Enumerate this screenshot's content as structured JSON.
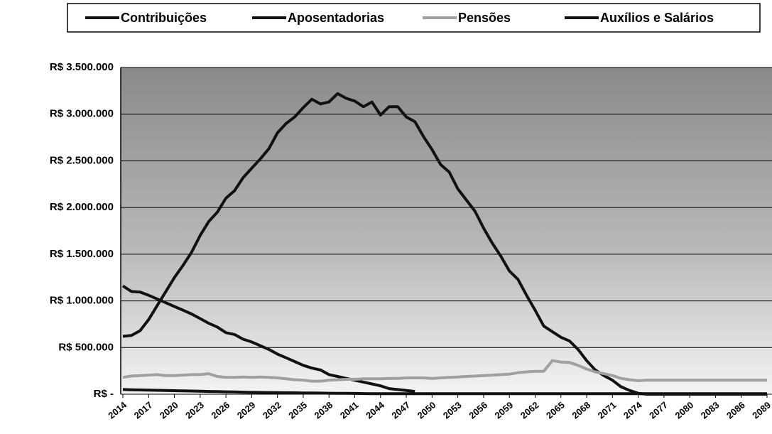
{
  "chart_data": {
    "type": "line",
    "x": [
      2014,
      2015,
      2016,
      2017,
      2018,
      2019,
      2020,
      2021,
      2022,
      2023,
      2024,
      2025,
      2026,
      2027,
      2028,
      2029,
      2030,
      2031,
      2032,
      2033,
      2034,
      2035,
      2036,
      2037,
      2038,
      2039,
      2040,
      2041,
      2042,
      2043,
      2044,
      2045,
      2046,
      2047,
      2048,
      2049,
      2050,
      2051,
      2052,
      2053,
      2054,
      2055,
      2056,
      2057,
      2058,
      2059,
      2060,
      2061,
      2062,
      2063,
      2064,
      2065,
      2066,
      2067,
      2068,
      2069,
      2070,
      2071,
      2072,
      2073,
      2074,
      2075,
      2076,
      2077,
      2078,
      2079,
      2080,
      2081,
      2082,
      2083,
      2084,
      2085,
      2086,
      2087,
      2088,
      2089
    ],
    "xlim": [
      2014,
      2089
    ],
    "xticks": [
      2014,
      2017,
      2020,
      2023,
      2026,
      2029,
      2032,
      2035,
      2038,
      2041,
      2044,
      2047,
      2050,
      2053,
      2056,
      2059,
      2062,
      2065,
      2068,
      2071,
      2074,
      2077,
      2080,
      2083,
      2086,
      2089
    ],
    "ylim": [
      0,
      3500000
    ],
    "yticks": [
      {
        "value": 0,
        "label": "R$ -"
      },
      {
        "value": 500000,
        "label": "R$ 500.000"
      },
      {
        "value": 1000000,
        "label": "R$ 1.000.000"
      },
      {
        "value": 1500000,
        "label": "R$ 1.500.000"
      },
      {
        "value": 2000000,
        "label": "R$ 2.000.000"
      },
      {
        "value": 2500000,
        "label": "R$ 2.500.000"
      },
      {
        "value": 3000000,
        "label": "R$ 3.000.000"
      },
      {
        "value": 3500000,
        "label": "R$ 3.500.000"
      }
    ],
    "grid": true,
    "legend": "top",
    "series": [
      {
        "name": "Contribuições",
        "color": "#111111",
        "values": [
          1160000,
          1100000,
          1095000,
          1060000,
          1020000,
          980000,
          940000,
          900000,
          860000,
          810000,
          760000,
          720000,
          660000,
          640000,
          590000,
          560000,
          520000,
          480000,
          430000,
          390000,
          350000,
          310000,
          280000,
          260000,
          210000,
          190000,
          170000,
          150000,
          130000,
          110000,
          90000,
          60000,
          50000,
          40000,
          30000,
          null,
          null,
          null,
          null,
          null,
          null,
          null,
          null,
          null,
          null,
          null,
          null,
          null,
          null,
          null,
          null,
          null,
          null,
          null,
          null,
          null,
          null,
          null,
          null,
          null,
          null,
          null,
          null,
          null,
          null,
          null,
          null,
          null,
          null,
          null,
          null,
          null,
          null,
          null,
          null,
          null
        ]
      },
      {
        "name": "Aposentadorias",
        "color": "#111111",
        "values": [
          620000,
          630000,
          680000,
          800000,
          950000,
          1100000,
          1250000,
          1380000,
          1520000,
          1700000,
          1850000,
          1950000,
          2100000,
          2180000,
          2320000,
          2420000,
          2520000,
          2630000,
          2800000,
          2900000,
          2970000,
          3070000,
          3160000,
          3110000,
          3130000,
          3220000,
          3170000,
          3140000,
          3080000,
          3130000,
          2990000,
          3080000,
          3080000,
          2970000,
          2920000,
          2760000,
          2620000,
          2460000,
          2380000,
          2200000,
          2080000,
          1960000,
          1780000,
          1620000,
          1480000,
          1320000,
          1230000,
          1060000,
          900000,
          730000,
          670000,
          610000,
          570000,
          480000,
          360000,
          260000,
          200000,
          150000,
          80000,
          40000,
          10000,
          0,
          0,
          0,
          0,
          0,
          0,
          0,
          0,
          0,
          0,
          0,
          0,
          0,
          0,
          0
        ]
      },
      {
        "name": "Pensões",
        "color": "#a0a0a0",
        "values": [
          180000,
          195000,
          200000,
          205000,
          210000,
          200000,
          200000,
          205000,
          210000,
          210000,
          220000,
          190000,
          180000,
          180000,
          185000,
          180000,
          185000,
          180000,
          175000,
          165000,
          155000,
          150000,
          140000,
          140000,
          150000,
          155000,
          160000,
          160000,
          165000,
          165000,
          165000,
          170000,
          170000,
          175000,
          175000,
          175000,
          170000,
          175000,
          180000,
          185000,
          190000,
          195000,
          200000,
          205000,
          210000,
          215000,
          230000,
          240000,
          245000,
          245000,
          360000,
          345000,
          340000,
          310000,
          270000,
          240000,
          220000,
          200000,
          170000,
          155000,
          145000,
          150000,
          150000,
          150000,
          150000,
          150000,
          150000,
          150000,
          150000,
          150000,
          150000,
          150000,
          150000,
          150000,
          150000,
          150000
        ]
      },
      {
        "name": "Auxílios e Salários",
        "color": "#111111",
        "values": [
          50000,
          48000,
          46000,
          44000,
          42000,
          40000,
          38000,
          36000,
          34000,
          32000,
          30000,
          28000,
          26000,
          24000,
          22000,
          20000,
          19000,
          18000,
          17000,
          16000,
          15000,
          14000,
          13000,
          12000,
          11000,
          10000,
          9000,
          8000,
          7000,
          6000,
          5000,
          5000,
          5000,
          5000,
          5000,
          5000,
          5000,
          5000,
          5000,
          5000,
          5000,
          5000,
          5000,
          5000,
          5000,
          5000,
          5000,
          5000,
          5000,
          5000,
          5000,
          5000,
          5000,
          5000,
          5000,
          5000,
          5000,
          5000,
          5000,
          5000,
          5000,
          5000,
          5000,
          5000,
          5000,
          5000,
          5000,
          5000,
          5000,
          5000,
          5000,
          5000,
          5000,
          5000,
          5000,
          5000
        ]
      }
    ]
  }
}
